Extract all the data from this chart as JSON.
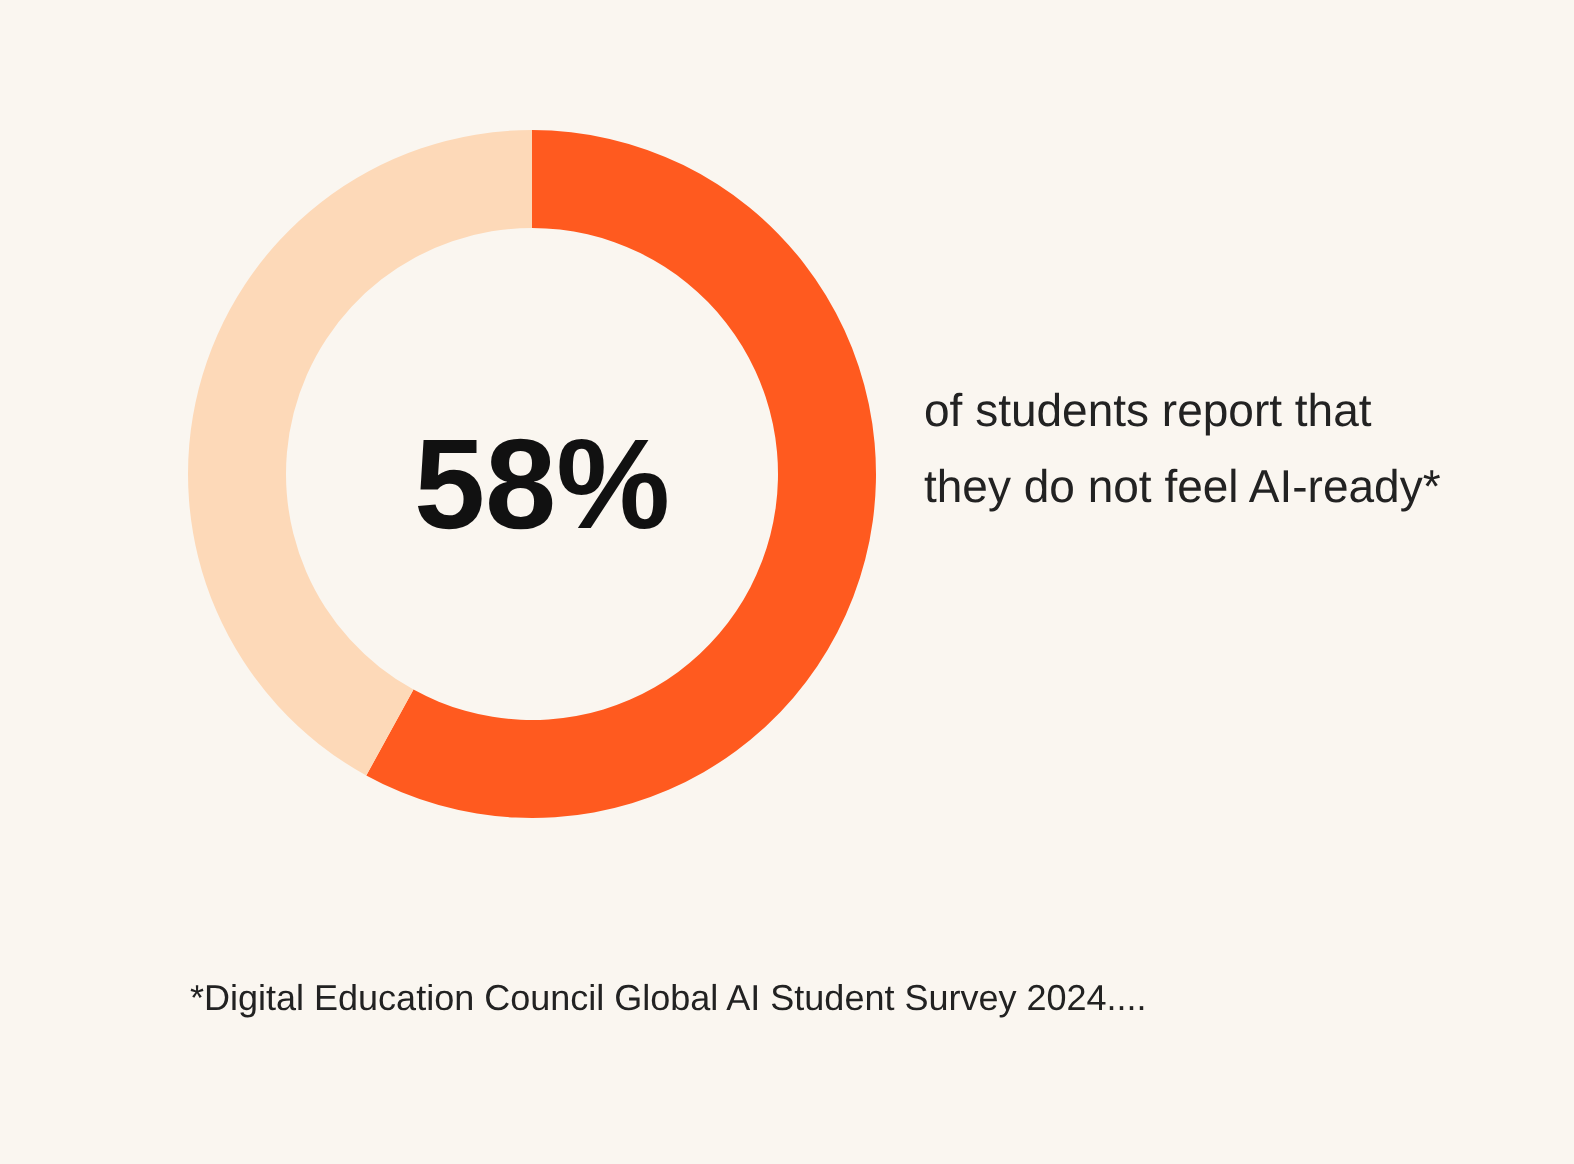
{
  "chart_data": {
    "type": "donut",
    "title": "58%",
    "categories": [
      null,
      null
    ],
    "values": [
      58,
      42
    ],
    "colors": [
      "#ff5a1f",
      "#fdd9b8"
    ],
    "annotations": [
      "of students report that they do not feel AI-ready*",
      "*Digital Education Council Global AI Student Survey 2024...."
    ]
  }
}
